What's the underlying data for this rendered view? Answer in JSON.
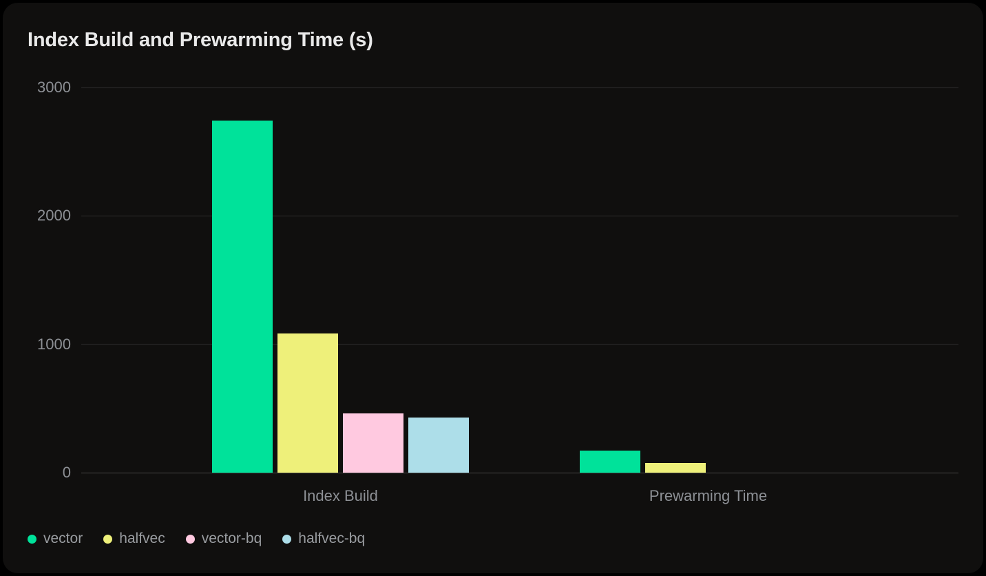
{
  "page": {
    "background": "#000000",
    "card_background": "#100f0e",
    "gridline_color": "#2e2e2e",
    "axis_line_color": "#474747",
    "tick_text_color": "#8d9095",
    "legend_text_color": "#9a9da1",
    "title_color": "#e9e9e9"
  },
  "chart_data": {
    "type": "bar",
    "title": "Index Build and Prewarming Time (s)",
    "categories": [
      "Index Build",
      "Prewarming Time"
    ],
    "series": [
      {
        "name": "vector",
        "color": "#00e29a",
        "values": [
          2740,
          170
        ]
      },
      {
        "name": "halfvec",
        "color": "#eef07a",
        "values": [
          1085,
          75
        ]
      },
      {
        "name": "vector-bq",
        "color": "#ffc9e0",
        "values": [
          460,
          0
        ]
      },
      {
        "name": "halfvec-bq",
        "color": "#addee9",
        "values": [
          430,
          0
        ]
      }
    ],
    "ylim": [
      0,
      3000
    ],
    "yticks": [
      0,
      1000,
      2000,
      3000
    ],
    "grid": true,
    "legend_position": "bottom-left",
    "unit": "s"
  }
}
